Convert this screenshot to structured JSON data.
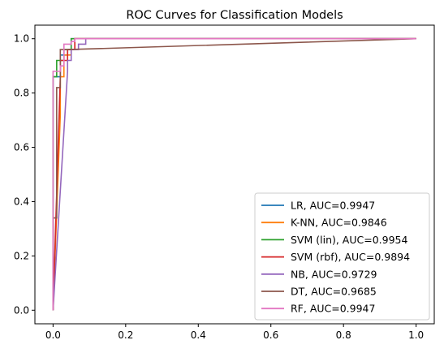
{
  "chart_data": {
    "type": "line",
    "title": "ROC Curves for Classification Models",
    "xlabel": "",
    "ylabel": "",
    "xlim": [
      -0.05,
      1.05
    ],
    "ylim": [
      -0.05,
      1.05
    ],
    "x_ticks": [
      "0.0",
      "0.2",
      "0.4",
      "0.6",
      "0.8",
      "1.0"
    ],
    "y_ticks": [
      "0.0",
      "0.2",
      "0.4",
      "0.6",
      "0.8",
      "1.0"
    ],
    "grid": false,
    "legend_position": "lower-right",
    "series": [
      {
        "name": "LR, AUC=0.9947",
        "color": "#1f77b4",
        "x": [
          0,
          0,
          0.02,
          0.02,
          0.04,
          0.04,
          0.05,
          0.05,
          1.0
        ],
        "y": [
          0,
          0.86,
          0.86,
          0.94,
          0.94,
          0.96,
          0.96,
          1.0,
          1.0
        ]
      },
      {
        "name": "K-NN, AUC=0.9846",
        "color": "#ff7f0e",
        "x": [
          0,
          0.02,
          0.02,
          0.03,
          0.03,
          0.05,
          0.05,
          0.06,
          0.06,
          1.0
        ],
        "y": [
          0,
          0.72,
          0.86,
          0.86,
          0.94,
          0.94,
          0.96,
          0.96,
          1.0,
          1.0
        ]
      },
      {
        "name": "SVM (lin), AUC=0.9954",
        "color": "#2ca02c",
        "x": [
          0,
          0,
          0.01,
          0.01,
          0.03,
          0.03,
          0.05,
          0.05,
          1.0
        ],
        "y": [
          0,
          0.86,
          0.86,
          0.92,
          0.92,
          0.96,
          0.96,
          1.0,
          1.0
        ]
      },
      {
        "name": "SVM (rbf), AUC=0.9894",
        "color": "#d62728",
        "x": [
          0,
          0.02,
          0.02,
          0.04,
          0.04,
          0.06,
          0.06,
          1.0
        ],
        "y": [
          0,
          0.86,
          0.92,
          0.92,
          0.96,
          0.96,
          1.0,
          1.0
        ]
      },
      {
        "name": "NB, AUC=0.9729",
        "color": "#9467bd",
        "x": [
          0,
          0.04,
          0.04,
          0.05,
          0.05,
          0.07,
          0.07,
          0.09,
          0.09,
          1.0
        ],
        "y": [
          0,
          0.88,
          0.92,
          0.92,
          0.96,
          0.96,
          0.98,
          0.98,
          1.0,
          1.0
        ]
      },
      {
        "name": "DT, AUC=0.9685",
        "color": "#8c564b",
        "x": [
          0,
          0,
          0.01,
          0.01,
          0.02,
          0.02,
          0.04,
          0.04,
          1.0
        ],
        "y": [
          0,
          0.34,
          0.34,
          0.82,
          0.82,
          0.96,
          0.96,
          0.96,
          1.0
        ]
      },
      {
        "name": "RF, AUC=0.9947",
        "color": "#e377c2",
        "x": [
          0,
          0,
          0.02,
          0.02,
          0.03,
          0.03,
          0.05,
          0.05,
          0.06,
          0.06,
          1.0
        ],
        "y": [
          0,
          0.88,
          0.88,
          0.9,
          0.9,
          0.98,
          0.98,
          0.99,
          0.99,
          1.0,
          1.0
        ]
      }
    ]
  }
}
